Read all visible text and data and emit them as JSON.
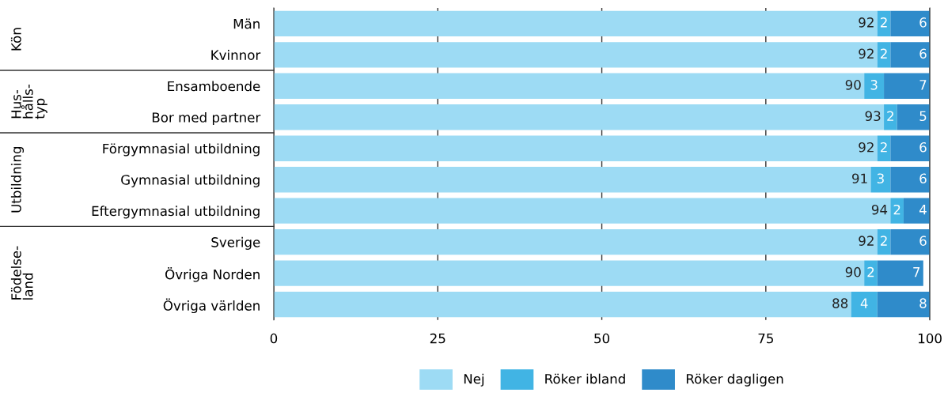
{
  "chart_data": {
    "type": "bar",
    "orientation": "horizontal",
    "stacked": true,
    "categories": [
      "Män",
      "Kvinnor",
      "Ensamboende",
      "Bor med partner",
      "Förgymnasial utbildning",
      "Gymnasial utbildning",
      "Eftergymnasial utbildning",
      "Sverige",
      "Övriga Norden",
      "Övriga världen"
    ],
    "series": [
      {
        "name": "Nej",
        "color": "#9ddbf4",
        "values": [
          92,
          92,
          90,
          93,
          92,
          91,
          94,
          92,
          90,
          88
        ]
      },
      {
        "name": "Röker ibland",
        "color": "#41b4e4",
        "values": [
          2,
          2,
          3,
          2,
          2,
          3,
          2,
          2,
          2,
          4
        ]
      },
      {
        "name": "Röker dagligen",
        "color": "#2f8bca",
        "values": [
          6,
          6,
          7,
          5,
          6,
          6,
          4,
          6,
          7,
          8
        ]
      }
    ],
    "annotations": [
      "Kön",
      "Hus-\nhålls-\ntyp",
      "Utbildning",
      "Födelse-\nland"
    ],
    "xlim": [
      0,
      100
    ],
    "xticks": [
      0,
      25,
      50,
      75,
      100
    ],
    "grid": "x",
    "legend": "bottom",
    "data_labels": true
  }
}
